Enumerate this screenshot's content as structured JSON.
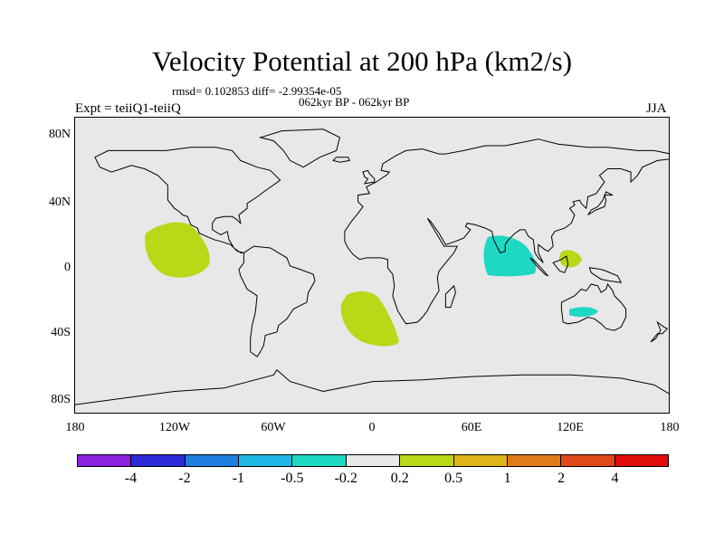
{
  "title": "Velocity Potential at 200 hPa (km2/s)",
  "stats": "rmsd= 0.102853 diff= -2.99354e-05",
  "left_label": "Expt = teiiQ1-teiiQ",
  "center_label": "062kyr BP - 062kyr BP",
  "right_label": "JJA",
  "y_ticks": [
    "80N",
    "40N",
    "0",
    "40S",
    "80S"
  ],
  "x_ticks": [
    "180",
    "120W",
    "60W",
    "0",
    "60E",
    "120E",
    "180"
  ],
  "colorbar": {
    "colors": [
      "#8b22e0",
      "#2b2bd8",
      "#1f7fe0",
      "#1fb8e6",
      "#1fd8c4",
      "#e8e8e8",
      "#b8d818",
      "#e0b418",
      "#e07a18",
      "#e04818",
      "#e00b0b"
    ],
    "labels": [
      "-4",
      "-2",
      "-1",
      "-0.5",
      "-0.2",
      "0.2",
      "0.5",
      "1",
      "2",
      "4"
    ]
  },
  "chart_data": {
    "type": "map",
    "projection": "cylindrical-equidistant",
    "lon_range": [
      -180,
      180
    ],
    "lat_range": [
      -90,
      90
    ],
    "background_color": "#e8e8e8",
    "anomalies": [
      {
        "region": "eastern tropical North Pacific",
        "lon": -125,
        "lat": 12,
        "class": "0.2 to 0.5",
        "color": "#b8d818"
      },
      {
        "region": "South Atlantic",
        "lon": -15,
        "lat": -24,
        "class": "0.2 to 0.5",
        "color": "#b8d818"
      },
      {
        "region": "Indian Ocean",
        "lon": 68,
        "lat": 6,
        "class": "-0.5 to -0.2",
        "color": "#1fd8c4"
      },
      {
        "region": "Philippines",
        "lon": 120,
        "lat": 4,
        "class": "0.2 to 0.5",
        "color": "#b8d818"
      },
      {
        "region": "Australia",
        "lon": 127,
        "lat": -27,
        "class": "-0.5 to -0.2",
        "color": "#1fd8c4"
      }
    ]
  }
}
